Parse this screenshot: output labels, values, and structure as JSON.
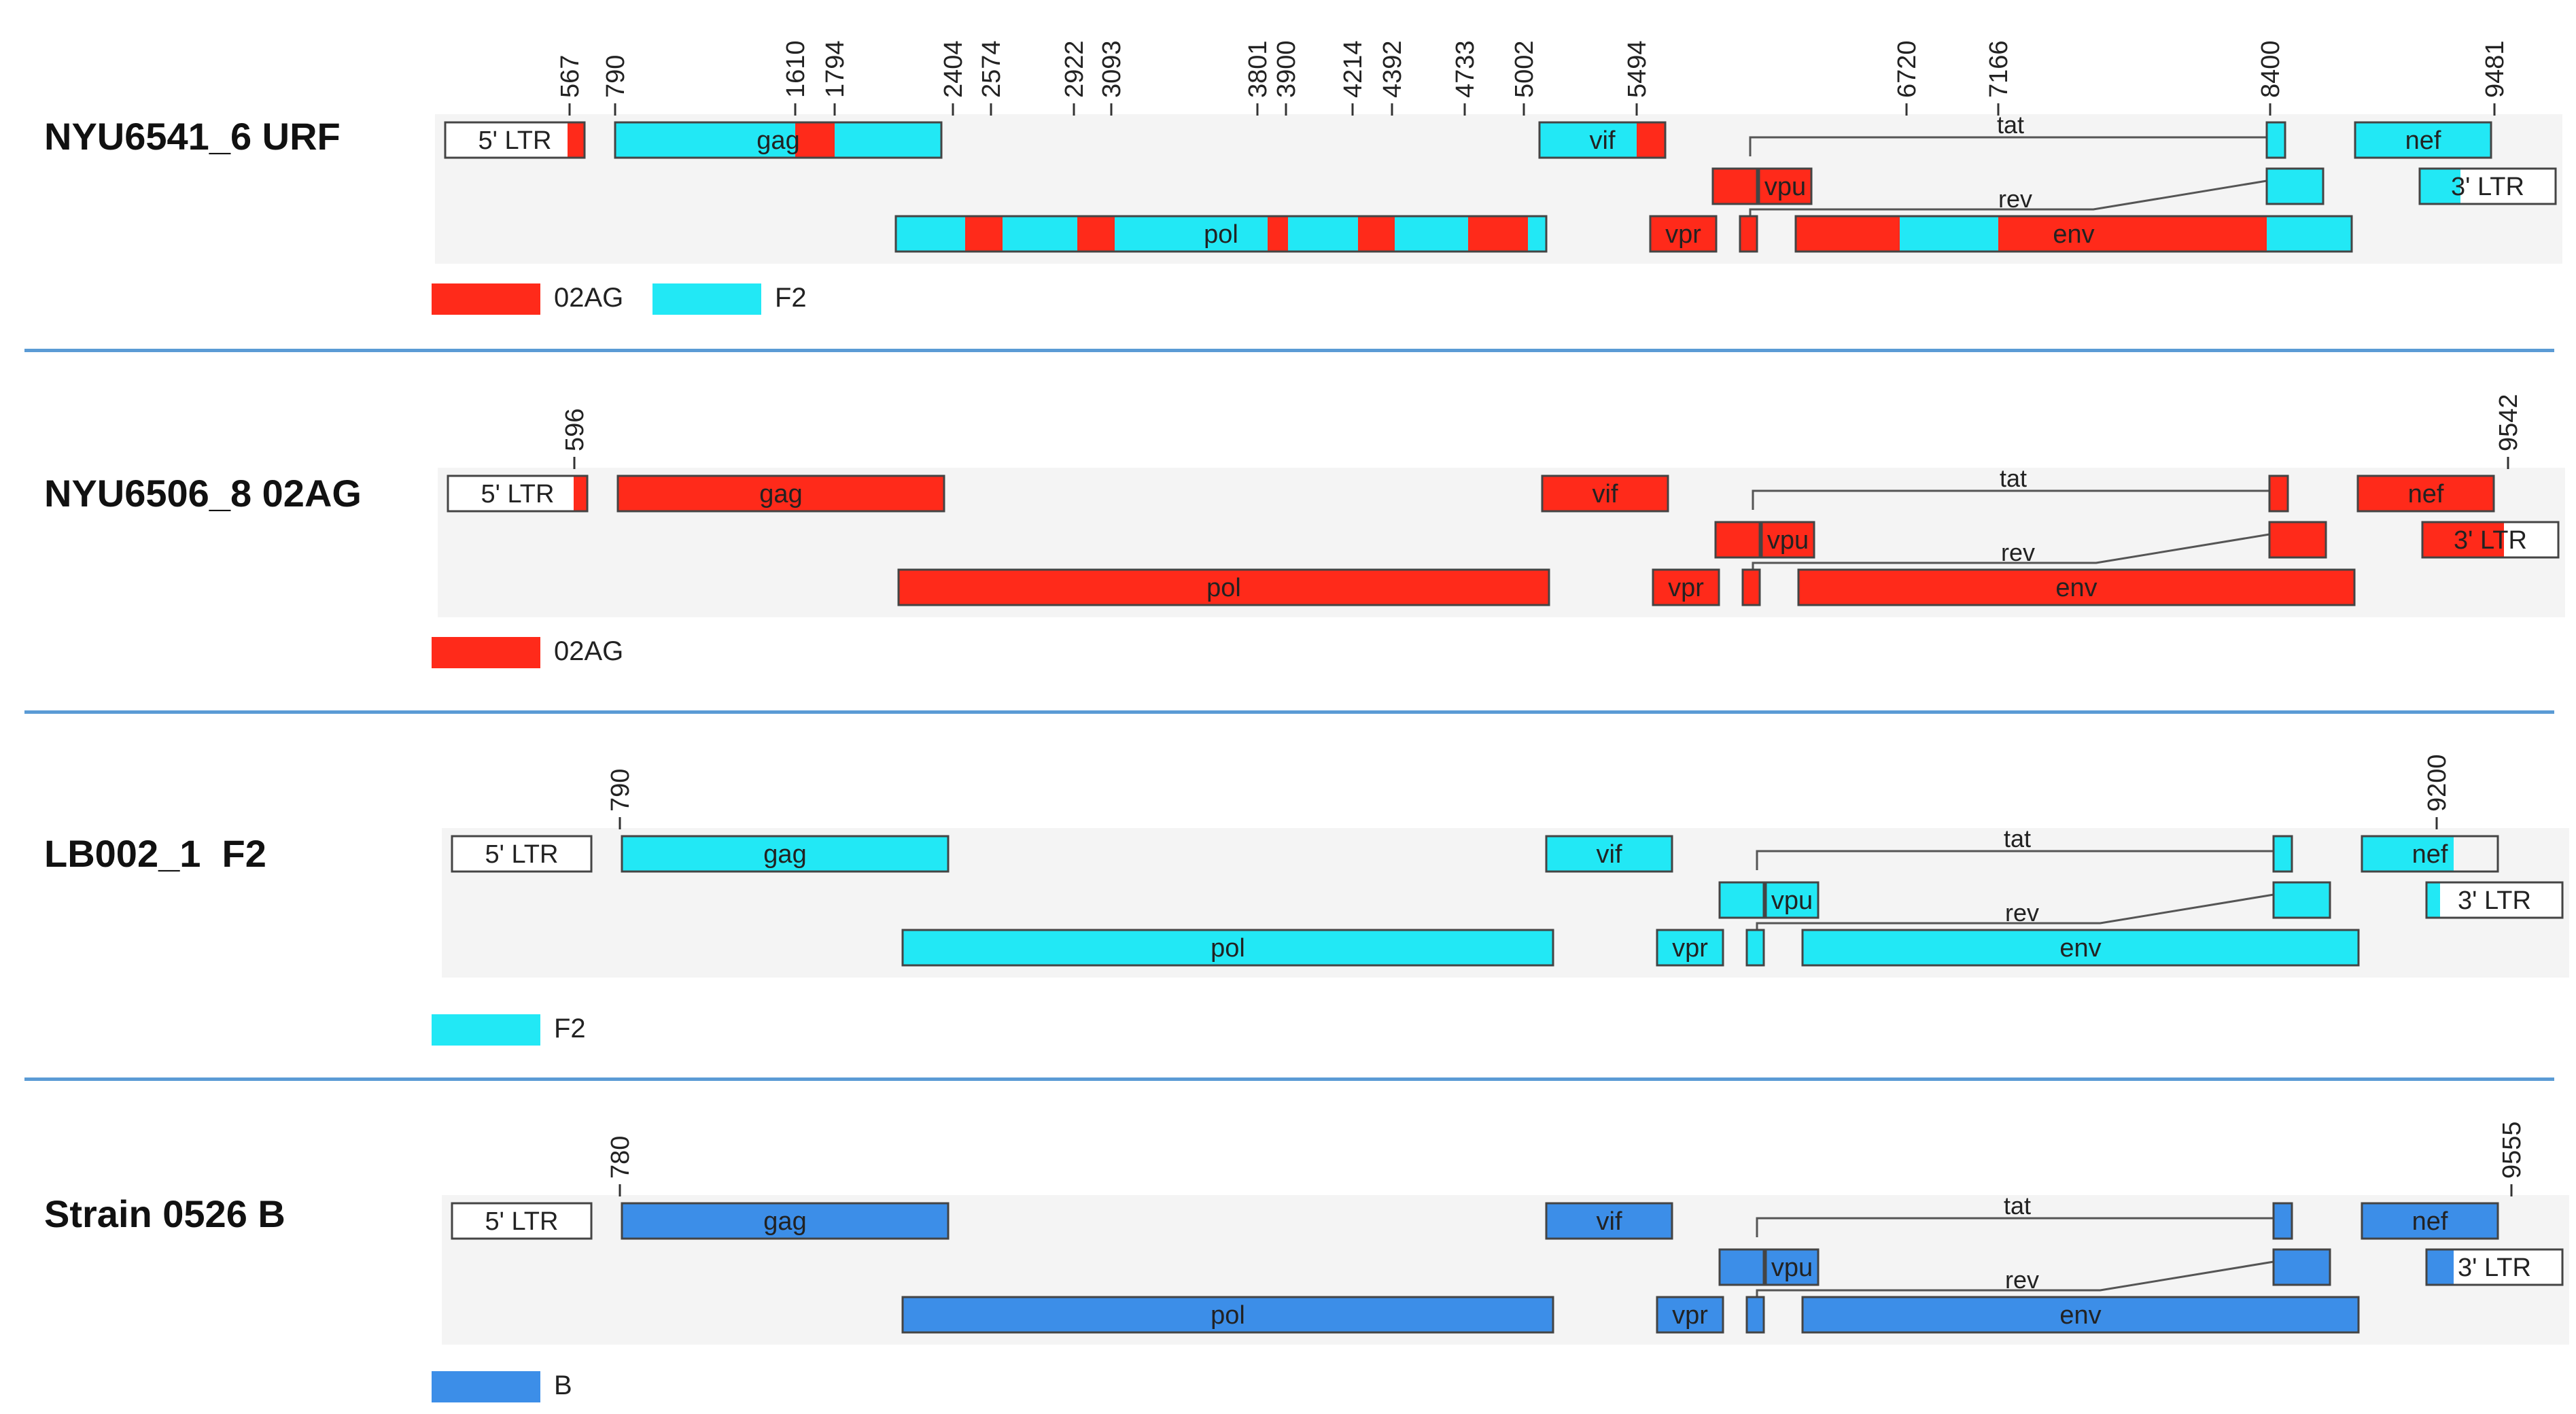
{
  "colors": {
    "02AG": "#ff2a1a",
    "F2": "#22e8f5",
    "B": "#3c8ee8",
    "LTR": "#ffffff",
    "bg_band": "#f4f4f4",
    "separator": "#5b9bd5"
  },
  "gene_labels": {
    "ltr5": "5' LTR",
    "gag": "gag",
    "pol": "pol",
    "vif": "vif",
    "vpr": "vpr",
    "tat": "tat",
    "vpu": "vpu",
    "rev": "rev",
    "env": "env",
    "nef": "nef",
    "ltr3": "3' LTR"
  },
  "panels": [
    {
      "label": "NYU6541_6 URF",
      "positions": [
        "567",
        "790",
        "1610",
        "1794",
        "2404",
        "2574",
        "2922",
        "3093",
        "3801",
        "3900",
        "4214",
        "4392",
        "4733",
        "5002",
        "5494",
        "6720",
        "7166",
        "8400",
        "9481"
      ],
      "legend": [
        {
          "name": "02AG",
          "color": "02AG"
        },
        {
          "name": "F2",
          "color": "F2"
        }
      ]
    },
    {
      "label": "NYU6506_8 02AG",
      "positions": [
        "596",
        "9542"
      ],
      "legend": [
        {
          "name": "02AG",
          "color": "02AG"
        }
      ]
    },
    {
      "label": "LB002_1  F2",
      "positions": [
        "790",
        "9200"
      ],
      "legend": [
        {
          "name": "F2",
          "color": "F2"
        }
      ]
    },
    {
      "label": "Strain 0526 B",
      "positions": [
        "780",
        "9555"
      ],
      "legend": [
        {
          "name": "B",
          "color": "B"
        }
      ]
    }
  ]
}
